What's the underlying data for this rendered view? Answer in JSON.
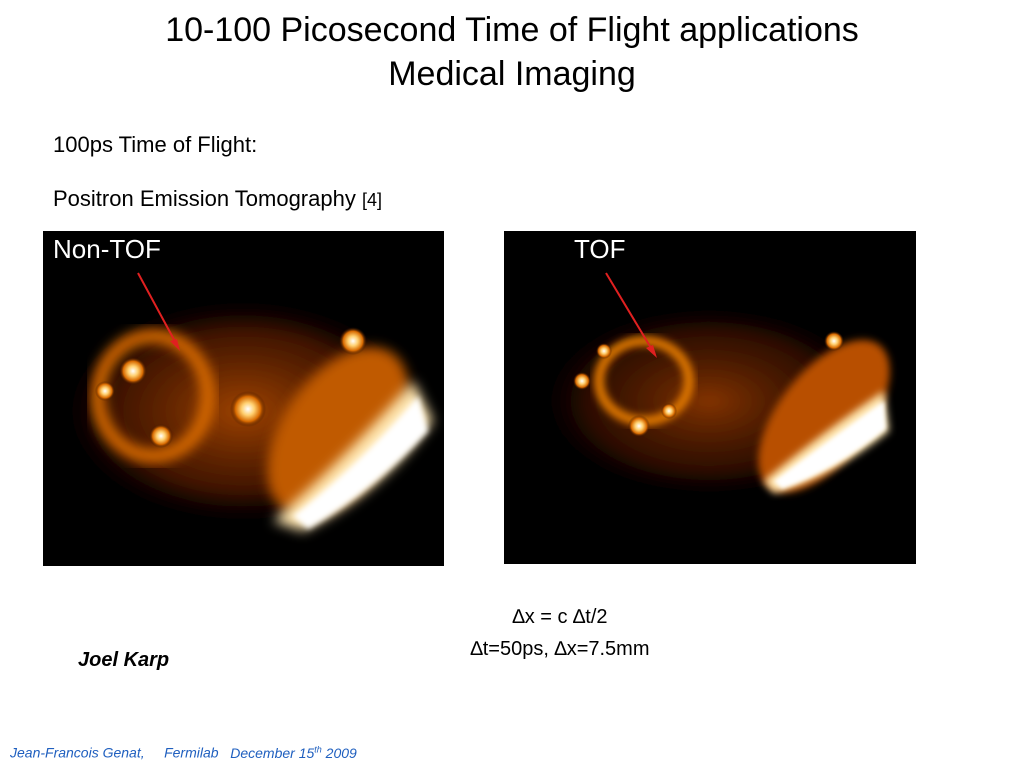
{
  "title": {
    "line1": "10-100 Picosecond Time of Flight applications",
    "line2": "Medical Imaging"
  },
  "body": {
    "line1": "100ps Time of Flight:",
    "line2_main": "Positron Emission Tomography",
    "line2_ref": "[4]"
  },
  "panels": [
    {
      "label": "Non-TOF"
    },
    {
      "label": "TOF"
    }
  ],
  "formulas": {
    "line1": "∆x = c ∆t/2",
    "line2": "∆t=50ps, ∆x=7.5mm"
  },
  "author": "Joel Karp",
  "footer": {
    "name": "Jean-Francois Genat,",
    "lab": "Fermilab",
    "date_prefix": "December 15",
    "date_sup": "th",
    "date_year": "2009"
  },
  "colors": {
    "arrow": "#e02020",
    "footer_text": "#1f5fbf",
    "glow_inner": "#ffffff",
    "glow_outer": "#d86a00"
  }
}
